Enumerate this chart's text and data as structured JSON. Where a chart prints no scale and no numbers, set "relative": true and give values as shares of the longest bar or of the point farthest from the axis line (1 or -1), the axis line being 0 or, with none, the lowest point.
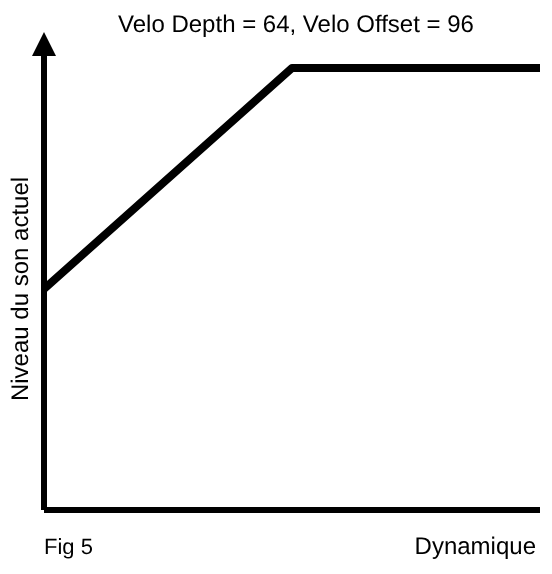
{
  "chart_data": {
    "type": "line",
    "title": "Velo Depth = 64, Velo Offset = 96",
    "xlabel": "Dynamique",
    "ylabel": "Niveau du son actuel",
    "annotations": [
      "Fig 5"
    ],
    "relative": true,
    "categories": [
      null,
      null,
      null
    ],
    "series": [
      {
        "color": "#000000",
        "values": [
          0.5,
          1,
          1
        ]
      }
    ],
    "marker": "none"
  }
}
